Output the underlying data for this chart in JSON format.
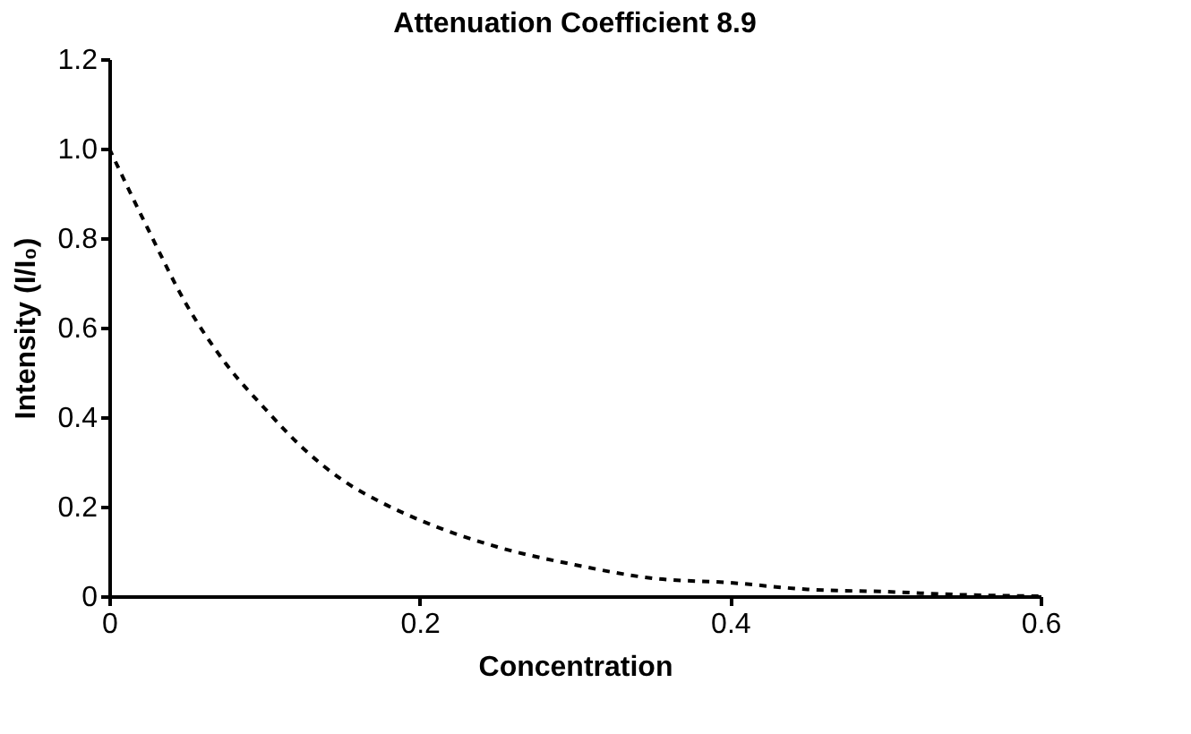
{
  "chart_data": {
    "type": "line",
    "title": "Attenuation Coefficient 8.9",
    "xlabel": "Concentration",
    "ylabel": "Intensity (I/I₀)",
    "x": [
      0,
      0.025,
      0.05,
      0.075,
      0.1,
      0.125,
      0.15,
      0.175,
      0.2,
      0.25,
      0.3,
      0.35,
      0.4,
      0.45,
      0.5,
      0.55,
      0.6
    ],
    "series": [
      {
        "color": "#000000",
        "values": [
          1.0,
          0.82,
          0.65,
          0.52,
          0.42,
          0.33,
          0.26,
          0.21,
          0.17,
          0.11,
          0.07,
          0.04,
          0.03,
          0.015,
          0.01,
          0.003,
          0.0
        ]
      }
    ],
    "xlim": [
      0,
      0.6
    ],
    "xticks": [
      0,
      0.2,
      0.4,
      0.6
    ],
    "ylim": [
      0,
      1.2
    ],
    "yticks": [
      0,
      0.2,
      0.4,
      0.6,
      0.8,
      {
        "value": 1.0,
        "label": "1.0"
      },
      1.2
    ],
    "grid": false,
    "marker": "none",
    "line_style": "dashed"
  }
}
